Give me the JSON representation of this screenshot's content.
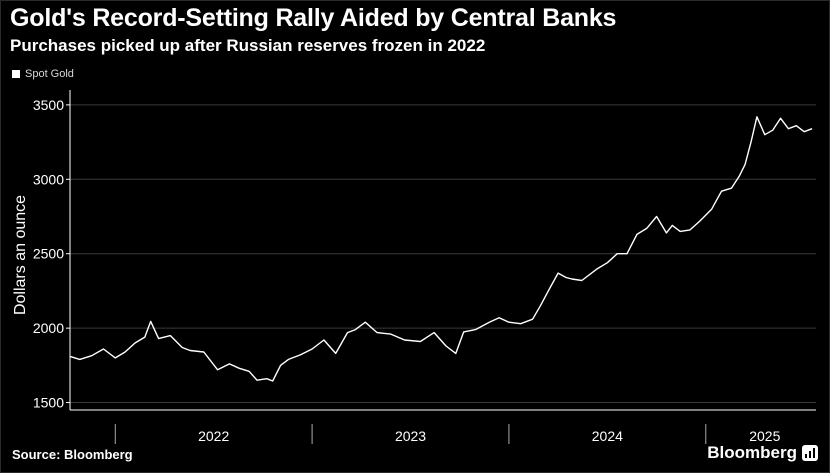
{
  "header": {
    "title": "Gold's Record-Setting Rally Aided by Central Banks",
    "subtitle": "Purchases picked up after Russian reserves frozen in 2022"
  },
  "footer": {
    "source": "Source: Bloomberg",
    "brand": "Bloomberg"
  },
  "colors": {
    "background": "#000000",
    "line": "#ffffff",
    "grid": "#3a3a3a",
    "text": "#ffffff"
  },
  "icons": [
    "bloomberg-chart-icon"
  ],
  "chart_data": {
    "type": "line",
    "title": "Gold's Record-Setting Rally Aided by Central Banks",
    "subtitle": "Purchases picked up after Russian reserves frozen in 2022",
    "ylabel": "Dollars an ounce",
    "xlabel": "",
    "ylim": [
      1450,
      3600
    ],
    "xlim": [
      2021.77,
      2025.56
    ],
    "y_ticks": [
      1500,
      2000,
      2500,
      3000,
      3500
    ],
    "y_tick_labels": [
      "1500",
      "2000",
      "2500",
      "3000",
      "3500"
    ],
    "x_year_boundaries": [
      2022.0,
      2023.0,
      2024.0,
      2025.0
    ],
    "x_tick_labels": [
      {
        "label": "2022",
        "x": 2022.5
      },
      {
        "label": "2023",
        "x": 2023.5
      },
      {
        "label": "2024",
        "x": 2024.5
      },
      {
        "label": "2025",
        "x": 2025.3
      }
    ],
    "grid": true,
    "legend": {
      "placement": "top-left",
      "entries": [
        "Spot Gold"
      ]
    },
    "series": [
      {
        "name": "Spot Gold",
        "x": [
          2021.77,
          2021.82,
          2021.88,
          2021.94,
          2022.0,
          2022.05,
          2022.1,
          2022.15,
          2022.18,
          2022.22,
          2022.28,
          2022.34,
          2022.38,
          2022.45,
          2022.52,
          2022.58,
          2022.63,
          2022.68,
          2022.72,
          2022.77,
          2022.8,
          2022.84,
          2022.88,
          2022.94,
          2023.0,
          2023.06,
          2023.12,
          2023.18,
          2023.22,
          2023.27,
          2023.33,
          2023.4,
          2023.47,
          2023.55,
          2023.62,
          2023.68,
          2023.73,
          2023.77,
          2023.83,
          2023.9,
          2023.95,
          2024.0,
          2024.06,
          2024.12,
          2024.16,
          2024.2,
          2024.25,
          2024.29,
          2024.32,
          2024.37,
          2024.45,
          2024.5,
          2024.55,
          2024.6,
          2024.65,
          2024.7,
          2024.75,
          2024.8,
          2024.83,
          2024.87,
          2024.92,
          2024.97,
          2025.03,
          2025.08,
          2025.13,
          2025.17,
          2025.2,
          2025.23,
          2025.26,
          2025.3,
          2025.34,
          2025.38,
          2025.42,
          2025.46,
          2025.5,
          2025.54
        ],
        "values": [
          1810,
          1790,
          1815,
          1860,
          1800,
          1840,
          1900,
          1940,
          2045,
          1930,
          1950,
          1870,
          1850,
          1840,
          1720,
          1760,
          1730,
          1710,
          1650,
          1660,
          1645,
          1750,
          1790,
          1820,
          1860,
          1920,
          1830,
          1970,
          1990,
          2040,
          1970,
          1960,
          1920,
          1910,
          1970,
          1880,
          1830,
          1975,
          1990,
          2040,
          2070,
          2040,
          2030,
          2060,
          2150,
          2250,
          2370,
          2340,
          2330,
          2320,
          2400,
          2440,
          2500,
          2500,
          2630,
          2670,
          2750,
          2640,
          2690,
          2650,
          2660,
          2720,
          2800,
          2920,
          2940,
          3020,
          3100,
          3250,
          3420,
          3300,
          3330,
          3410,
          3340,
          3360,
          3320,
          3340
        ]
      }
    ]
  }
}
